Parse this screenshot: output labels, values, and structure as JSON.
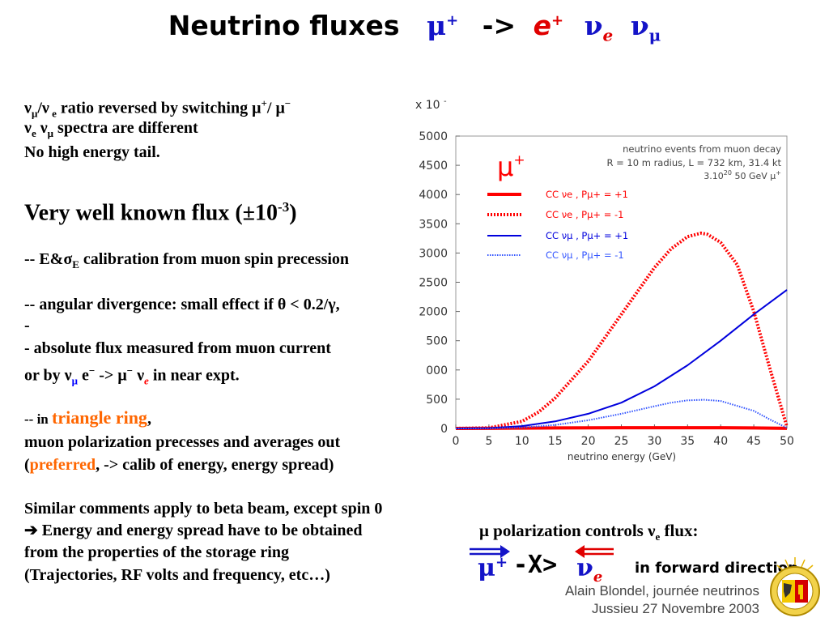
{
  "title": {
    "text": "Neutrino fluxes",
    "mu": "μ",
    "plus": "+",
    "arrow": "->",
    "e": "e",
    "nu": "ν",
    "sub_e": "e",
    "sub_mu": "μ"
  },
  "text_lines": {
    "l1": "ratio reversed by switching",
    "l2": "spectra are different",
    "l3": "No high energy tail.",
    "l4": "Very well known flux (±10",
    "l4_exp": "-3",
    "l5a": "-- E&σ",
    "l5_sub": "E",
    "l5b": " calibration from muon spin precession",
    "l6": "-- angular divergence: small effect if θ < 0.2/γ,",
    "l7": "-",
    "l8": "- absolute flux measured from muon current",
    "l9a": " or by ν",
    "l9b": " e",
    "l9c": " -> μ",
    "l9d": "  ν",
    "l10a": "-- in ",
    "l10_hl": "triangle ring",
    "l10b": ",",
    "l11": "muon polarization precesses and averages out",
    "l12a": "(",
    "l12_hl": "preferred",
    "l12b": ", -> calib of energy, energy spread)",
    "l13": "Similar comments apply to beta beam, except spin 0",
    "l14": "  ➔  Energy and energy spread have to be obtained",
    "l15": "from the properties of the storage ring",
    "l16": "(Trajectories, RF volts and frequency, etc…)"
  },
  "polarization": {
    "label_a": "μ polarization controls ν",
    "label_sub": "e",
    "label_b": " flux:",
    "mu": "μ",
    "plus": "+",
    "xarrow": "-X>",
    "nu": "ν",
    "e": "e",
    "forward": "in forward direction"
  },
  "footer": {
    "line1": "Alain Blondel, journée neutrinos",
    "line2": "Jussieu 27 Novembre 2003"
  },
  "chart_data": {
    "type": "line",
    "title": "neutrino events from muon decay",
    "info1": "R = 10 m radius, L = 732 km, 31.4 kt",
    "info2": "3.10",
    "info2_exp": "20",
    "info2b": " 50 GeV μ",
    "multiplier": "x 10",
    "multiplier_exp": "-",
    "muon_label": "μ",
    "muon_plus": "+",
    "xlabel": "neutrino energy (GeV)",
    "xlim": [
      0,
      50
    ],
    "ylim": [
      0,
      5000
    ],
    "x_ticks": [
      "0",
      "5",
      "10",
      "15",
      "20",
      "25",
      "30",
      "35",
      "40",
      "45",
      "50"
    ],
    "y_ticks": [
      "0",
      "500",
      "1000",
      "1500",
      "2000",
      "2500",
      "3000",
      "3500",
      "4000",
      "4500",
      "5000"
    ],
    "y_tick_labels": [
      "0",
      "500",
      "000",
      "500",
      "2000",
      "2500",
      "3000",
      "3500",
      "4000",
      "4500",
      "5000"
    ],
    "series": [
      {
        "name": "CC νe , Pμ+ = +1",
        "color": "#ff0000",
        "style": "solid-thick",
        "x": [
          0,
          5,
          10,
          15,
          20,
          25,
          30,
          35,
          40,
          45,
          50
        ],
        "y": [
          0,
          2,
          5,
          8,
          10,
          12,
          13,
          13,
          12,
          8,
          2
        ]
      },
      {
        "name": "CC νe , Pμ+ = -1",
        "color": "#ff0000",
        "style": "dotted-thick",
        "x": [
          0,
          5,
          10,
          12.5,
          15,
          20,
          25,
          30,
          32.5,
          35,
          37,
          38,
          40,
          42.5,
          45,
          47.5,
          50
        ],
        "y": [
          0,
          10,
          120,
          280,
          520,
          1150,
          1950,
          2750,
          3070,
          3280,
          3340,
          3320,
          3180,
          2800,
          2000,
          1000,
          30
        ]
      },
      {
        "name": "CC νμ , Pμ+ = +1",
        "color": "#0000dd",
        "style": "solid",
        "x": [
          0,
          5,
          10,
          15,
          20,
          25,
          30,
          35,
          40,
          45,
          50
        ],
        "y": [
          0,
          5,
          40,
          120,
          250,
          440,
          720,
          1080,
          1500,
          1950,
          2370
        ]
      },
      {
        "name": "CC νμ , Pμ+ = -1",
        "color": "#3355ff",
        "style": "dotted",
        "x": [
          0,
          5,
          10,
          15,
          20,
          25,
          30,
          32.5,
          35,
          37.5,
          40,
          45,
          47.5,
          50
        ],
        "y": [
          0,
          2,
          15,
          60,
          140,
          250,
          380,
          440,
          480,
          490,
          470,
          300,
          150,
          10
        ]
      }
    ],
    "legend": {
      "l1": "CC νe , Pμ+ = +1",
      "l2": "CC νe , Pμ+ = -1",
      "l3": "CC νμ , Pμ+ = +1",
      "l4": "CC νμ , Pμ+ = -1"
    }
  },
  "colors": {
    "blue": "#1414c8",
    "red": "#e00000",
    "orange": "#ff6600"
  }
}
